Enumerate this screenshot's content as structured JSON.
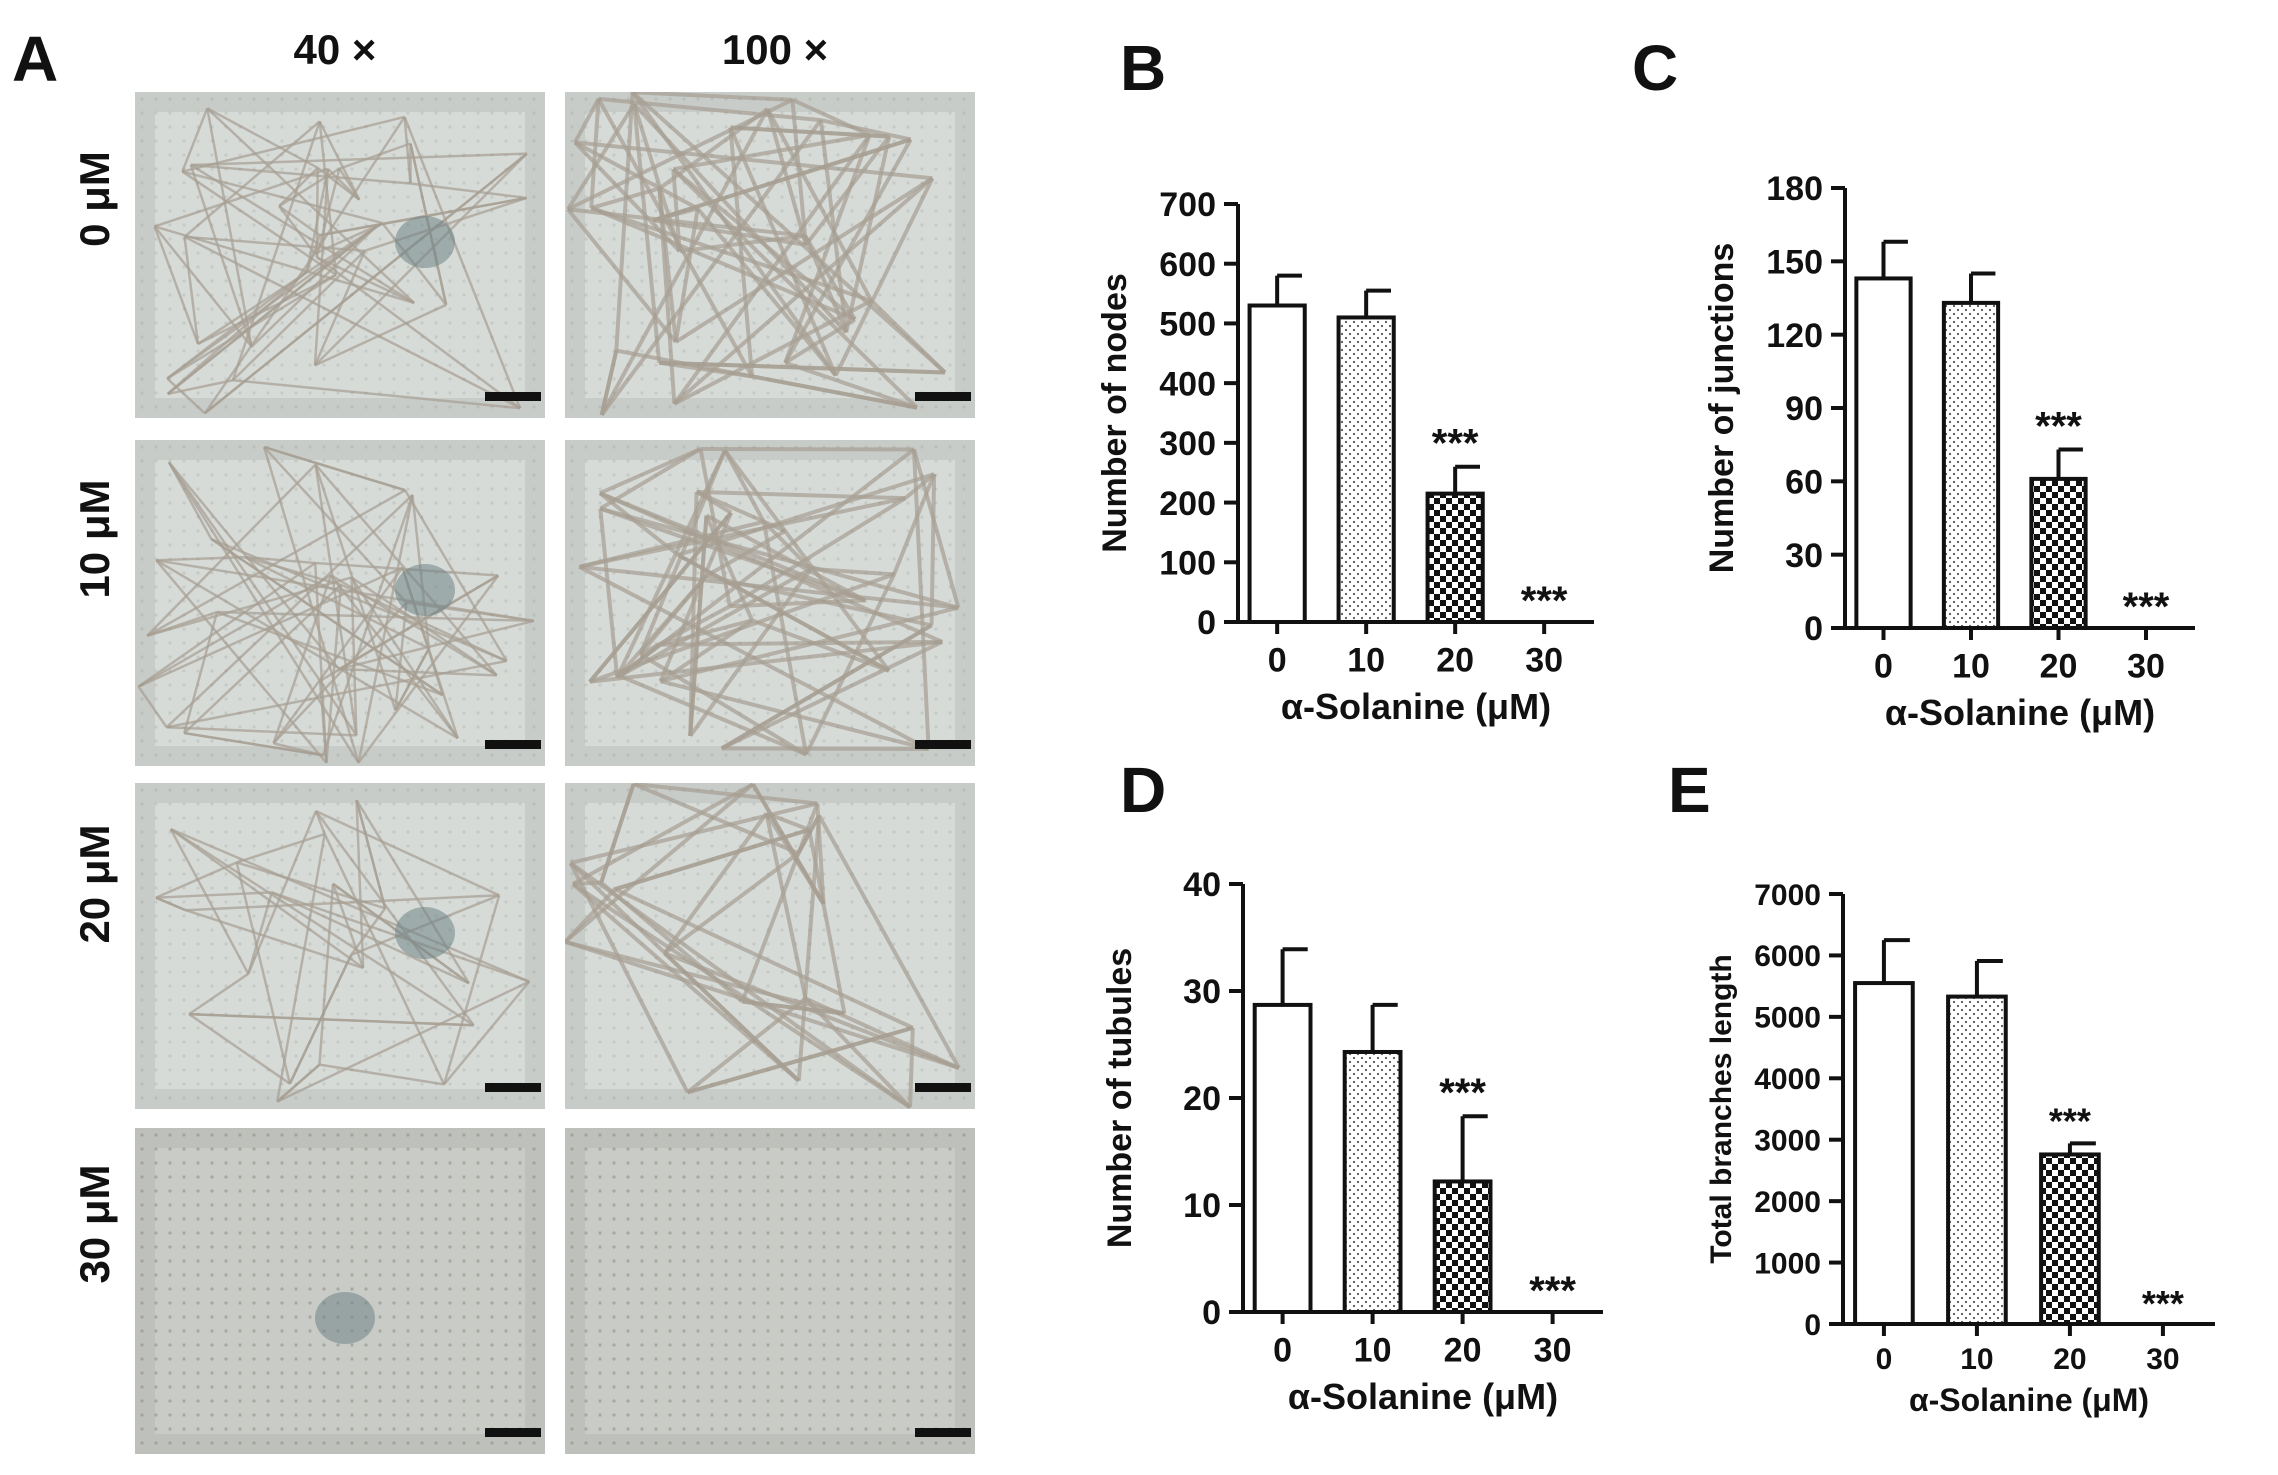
{
  "panel_a": {
    "letter": "A",
    "columns": [
      "40 ×",
      "100 ×"
    ],
    "rows": [
      "0 μM",
      "10 μM",
      "20 μM",
      "30 μM"
    ]
  },
  "chart_data": [
    {
      "panel": "B",
      "type": "bar",
      "categories": [
        "0",
        "10",
        "20",
        "30"
      ],
      "values": [
        530,
        510,
        215,
        0
      ],
      "errors": [
        50,
        45,
        45,
        0
      ],
      "significance": [
        "",
        "",
        "***",
        "***"
      ],
      "xlabel": "α-Solanine (μM)",
      "ylabel": "Number of nodes",
      "ylim": [
        0,
        700
      ],
      "yticks": [
        0,
        100,
        200,
        300,
        400,
        500,
        600,
        700
      ],
      "fills": [
        "white",
        "dots",
        "checker",
        "white"
      ]
    },
    {
      "panel": "C",
      "type": "bar",
      "categories": [
        "0",
        "10",
        "20",
        "30"
      ],
      "values": [
        143,
        133,
        61,
        0
      ],
      "errors": [
        15,
        12,
        12,
        0
      ],
      "significance": [
        "",
        "",
        "***",
        "***"
      ],
      "xlabel": "α-Solanine (μM)",
      "ylabel": "Number of junctions",
      "ylim": [
        0,
        180
      ],
      "yticks": [
        0,
        30,
        60,
        90,
        120,
        150,
        180
      ],
      "fills": [
        "white",
        "dots",
        "checker",
        "white"
      ]
    },
    {
      "panel": "D",
      "type": "bar",
      "categories": [
        "0",
        "10",
        "20",
        "30"
      ],
      "values": [
        28.7,
        24.3,
        12.2,
        0
      ],
      "errors": [
        5.2,
        4.4,
        6.1,
        0
      ],
      "significance": [
        "",
        "",
        "***",
        "***"
      ],
      "xlabel": "α-Solanine (μM)",
      "ylabel": "Number of tubules",
      "ylim": [
        0,
        40
      ],
      "yticks": [
        0,
        10,
        20,
        30,
        40
      ],
      "fills": [
        "white",
        "dots",
        "checker",
        "white"
      ]
    },
    {
      "panel": "E",
      "type": "bar",
      "categories": [
        "0",
        "10",
        "20",
        "30"
      ],
      "values": [
        5550,
        5330,
        2760,
        0
      ],
      "errors": [
        700,
        580,
        180,
        0
      ],
      "significance": [
        "",
        "",
        "***",
        "***"
      ],
      "xlabel": "α-Solanine (μM)",
      "ylabel": "Total branches length",
      "ylim": [
        0,
        7000
      ],
      "yticks": [
        0,
        1000,
        2000,
        3000,
        4000,
        5000,
        6000,
        7000
      ],
      "fills": [
        "white",
        "dots",
        "checker",
        "white"
      ]
    }
  ]
}
